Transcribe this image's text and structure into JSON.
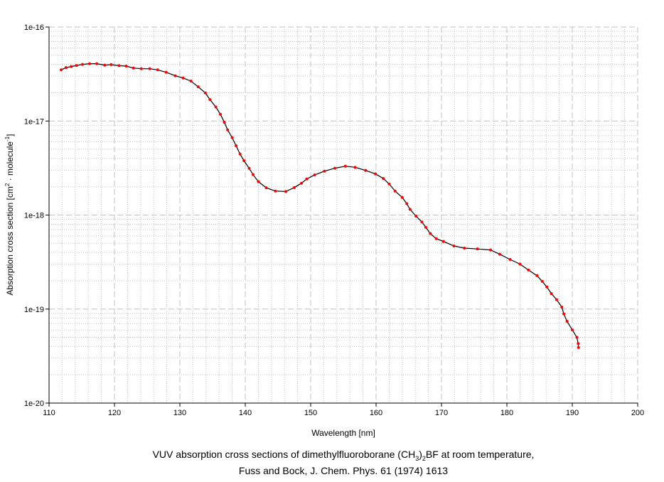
{
  "chart_data": {
    "type": "line",
    "title_line1_parts": [
      "VUV absorption cross sections of dimethylfluoroborane (CH",
      "3",
      ")",
      "2",
      "BF at room temperature,"
    ],
    "title_line2": "Fuss and Bock, J. Chem. Phys. 61 (1974) 1613",
    "xlabel": "Wavelength [nm]",
    "ylabel_parts": [
      "Absorption cross section [cm",
      "2",
      " · molecule",
      "-1",
      "]"
    ],
    "xlim": [
      110,
      200
    ],
    "ylim": [
      1e-20,
      1e-16
    ],
    "yscale": "log",
    "x_ticks": [
      "110",
      "120",
      "130",
      "140",
      "150",
      "160",
      "170",
      "180",
      "190",
      "200"
    ],
    "y_ticks": [
      "1e-20",
      "1e-19",
      "1e-18",
      "1e-17",
      "1e-16"
    ],
    "grid": true,
    "line_color": "#000000",
    "marker_color": "#ff0000",
    "series": [
      {
        "name": "(CH3)2BF",
        "x": [
          111.85,
          112.6,
          113.4,
          114.2,
          115.1,
          116.2,
          117.3,
          118.5,
          119.5,
          120.7,
          121.8,
          122.9,
          124.1,
          125.4,
          126.6,
          127.9,
          129.3,
          130.5,
          131.7,
          132.8,
          133.9,
          134.6,
          135.5,
          136.2,
          136.8,
          137.3,
          138.0,
          138.6,
          139.2,
          139.8,
          140.6,
          141.2,
          142.0,
          143.2,
          144.6,
          146.2,
          147.5,
          148.6,
          149.4,
          150.6,
          152.1,
          153.7,
          155.3,
          156.8,
          158.4,
          159.9,
          161.1,
          162.0,
          162.9,
          164.0,
          164.7,
          165.2,
          166.1,
          167.0,
          167.6,
          168.3,
          169.2,
          170.3,
          171.9,
          173.5,
          175.5,
          177.5,
          178.9,
          180.5,
          182.0,
          183.3,
          184.6,
          185.4,
          186.1,
          186.8,
          187.6,
          188.4,
          188.7,
          189.2,
          190.0,
          190.7,
          190.9,
          190.95
        ],
        "y": [
          3.5e-17,
          3.7e-17,
          3.8e-17,
          3.9e-17,
          4e-17,
          4.07e-17,
          4.07e-17,
          3.93e-17,
          3.98e-17,
          3.88e-17,
          3.84e-17,
          3.66e-17,
          3.6e-17,
          3.6e-17,
          3.5e-17,
          3.3e-17,
          3.03e-17,
          2.87e-17,
          2.66e-17,
          2.31e-17,
          1.99e-17,
          1.69e-17,
          1.41e-17,
          1.18e-17,
          9.7e-18,
          8.05e-18,
          6.65e-18,
          5.46e-18,
          4.46e-18,
          3.79e-18,
          3.14e-18,
          2.69e-18,
          2.27e-18,
          1.95e-18,
          1.8e-18,
          1.78e-18,
          1.96e-18,
          2.18e-18,
          2.42e-18,
          2.67e-18,
          2.93e-18,
          3.15e-18,
          3.31e-18,
          3.22e-18,
          2.98e-18,
          2.74e-18,
          2.45e-18,
          2.14e-18,
          1.8e-18,
          1.54e-18,
          1.32e-18,
          1.15e-18,
          9.75e-19,
          8.44e-19,
          7.41e-19,
          6.34e-19,
          5.61e-19,
          5.24e-19,
          4.69e-19,
          4.45e-19,
          4.36e-19,
          4.25e-19,
          3.83e-19,
          3.37e-19,
          3.01e-19,
          2.6e-19,
          2.27e-19,
          1.97e-19,
          1.72e-19,
          1.46e-19,
          1.26e-19,
          1.05e-19,
          8.9e-20,
          7.4e-20,
          6e-20,
          5e-20,
          4.3e-20,
          3.9e-20
        ]
      }
    ]
  }
}
